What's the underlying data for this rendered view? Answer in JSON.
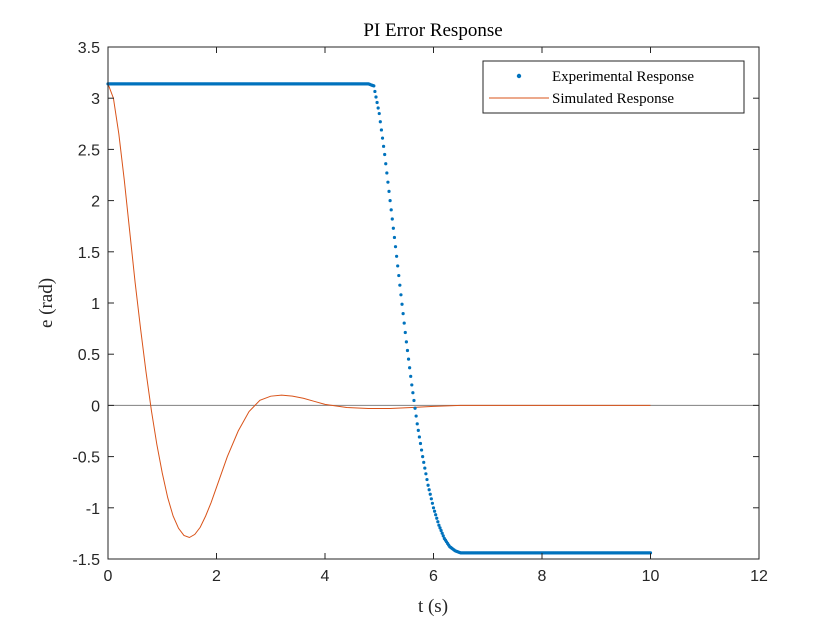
{
  "chart_data": {
    "type": "line",
    "title": "PI Error Response",
    "xlabel": "t (s)",
    "ylabel": "e (rad)",
    "xlim": [
      0,
      12
    ],
    "ylim": [
      -1.5,
      3.5
    ],
    "xticks": [
      "0",
      "2",
      "4",
      "6",
      "8",
      "10",
      "12"
    ],
    "yticks": [
      "3.5",
      "3",
      "2.5",
      "2",
      "1.5",
      "1",
      "0.5",
      "0",
      "-0.5",
      "-1",
      "-1.5"
    ],
    "grid": false,
    "legend_location": "top-right",
    "reference_line": {
      "y": 0,
      "color": "#808080"
    },
    "series": [
      {
        "name": "Experimental Response",
        "style": "markers",
        "color": "#0072BD",
        "x": [
          0,
          1,
          2,
          3,
          4,
          4.8,
          4.9,
          5.0,
          5.1,
          5.2,
          5.3,
          5.4,
          5.5,
          5.6,
          5.7,
          5.8,
          5.9,
          6.0,
          6.1,
          6.2,
          6.3,
          6.4,
          6.5,
          6.6,
          7,
          8,
          9,
          10
        ],
        "y": [
          3.14,
          3.14,
          3.14,
          3.14,
          3.14,
          3.14,
          3.12,
          2.85,
          2.45,
          2.0,
          1.55,
          1.08,
          0.62,
          0.2,
          -0.18,
          -0.5,
          -0.78,
          -1.0,
          -1.17,
          -1.3,
          -1.38,
          -1.42,
          -1.44,
          -1.44,
          -1.44,
          -1.44,
          -1.44,
          -1.44
        ]
      },
      {
        "name": "Simulated Response",
        "style": "line",
        "color": "#D95319",
        "x": [
          0,
          0.1,
          0.2,
          0.3,
          0.4,
          0.5,
          0.6,
          0.7,
          0.8,
          0.9,
          1.0,
          1.1,
          1.2,
          1.3,
          1.4,
          1.5,
          1.6,
          1.7,
          1.8,
          1.9,
          2.0,
          2.2,
          2.4,
          2.6,
          2.8,
          3.0,
          3.2,
          3.4,
          3.6,
          3.8,
          4.0,
          4.4,
          4.8,
          5.2,
          5.6,
          6.0,
          6.5,
          7,
          8,
          9,
          10
        ],
        "y": [
          3.14,
          3.0,
          2.65,
          2.2,
          1.7,
          1.2,
          0.75,
          0.33,
          -0.05,
          -0.38,
          -0.66,
          -0.9,
          -1.08,
          -1.2,
          -1.27,
          -1.29,
          -1.26,
          -1.19,
          -1.08,
          -0.95,
          -0.8,
          -0.5,
          -0.25,
          -0.06,
          0.05,
          0.09,
          0.1,
          0.09,
          0.07,
          0.04,
          0.01,
          -0.02,
          -0.03,
          -0.03,
          -0.02,
          -0.01,
          0.0,
          0.0,
          0.0,
          0.0,
          0.0
        ]
      }
    ]
  }
}
